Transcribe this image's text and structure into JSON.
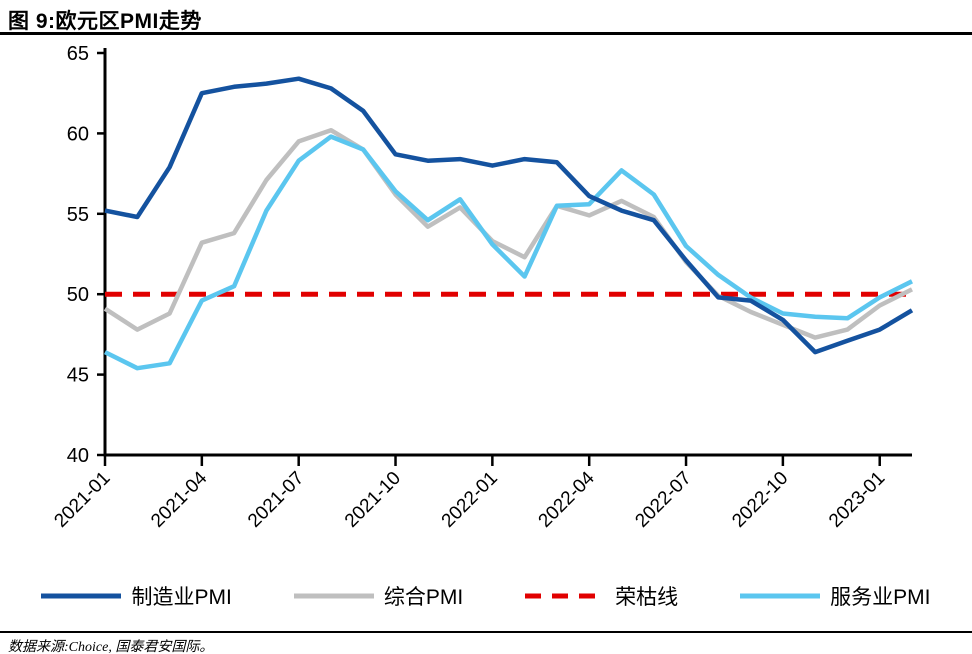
{
  "page": {
    "title": "图 9:欧元区PMI走势",
    "source": "数据来源:Choice, 国泰君安国际。"
  },
  "chart_data": {
    "type": "line",
    "title": "图 9:欧元区PMI走势",
    "xlabel": "",
    "ylabel": "",
    "ylim": [
      40,
      65
    ],
    "yticks": [
      40,
      45,
      50,
      55,
      60,
      65
    ],
    "grid": false,
    "legend_position": "bottom",
    "x_tick_indices": [
      0,
      3,
      6,
      9,
      12,
      15,
      18,
      21,
      24
    ],
    "categories": [
      "2021-01",
      "2021-02",
      "2021-03",
      "2021-04",
      "2021-05",
      "2021-06",
      "2021-07",
      "2021-08",
      "2021-09",
      "2021-10",
      "2021-11",
      "2021-12",
      "2022-01",
      "2022-02",
      "2022-03",
      "2022-04",
      "2022-05",
      "2022-06",
      "2022-07",
      "2022-08",
      "2022-09",
      "2022-10",
      "2022-11",
      "2022-12",
      "2023-01",
      "2023-02"
    ],
    "series": [
      {
        "key": "manufacturing-pmi",
        "name": "制造业PMI",
        "color": "#14529F",
        "dash": false,
        "values": [
          55.2,
          54.8,
          57.9,
          62.5,
          62.9,
          63.1,
          63.4,
          62.8,
          61.4,
          58.7,
          58.3,
          58.4,
          58.0,
          58.4,
          58.2,
          56.1,
          55.2,
          54.6,
          52.1,
          49.8,
          49.6,
          48.4,
          46.4,
          47.1,
          47.8,
          49.0
        ]
      },
      {
        "key": "composite-pmi",
        "name": "综合PMI",
        "color": "#BFBFBF",
        "dash": false,
        "values": [
          49.1,
          47.8,
          48.8,
          53.2,
          53.8,
          57.1,
          59.5,
          60.2,
          59.0,
          56.2,
          54.2,
          55.4,
          53.3,
          52.3,
          55.5,
          54.9,
          55.8,
          54.8,
          52.0,
          49.9,
          48.9,
          48.1,
          47.3,
          47.8,
          49.3,
          50.3
        ]
      },
      {
        "key": "boom-bust-line",
        "name": "荣枯线",
        "color": "#E10000",
        "dash": true,
        "values": [
          50,
          50,
          50,
          50,
          50,
          50,
          50,
          50,
          50,
          50,
          50,
          50,
          50,
          50,
          50,
          50,
          50,
          50,
          50,
          50,
          50,
          50,
          50,
          50,
          50,
          50
        ]
      },
      {
        "key": "services-pmi",
        "name": "服务业PMI",
        "color": "#5BC6EF",
        "dash": false,
        "values": [
          46.4,
          45.4,
          45.7,
          49.6,
          50.5,
          55.2,
          58.3,
          59.8,
          59.0,
          56.4,
          54.6,
          55.9,
          53.1,
          51.1,
          55.5,
          55.6,
          57.7,
          56.2,
          53.0,
          51.2,
          49.8,
          48.8,
          48.6,
          48.5,
          49.8,
          50.8
        ]
      }
    ]
  }
}
